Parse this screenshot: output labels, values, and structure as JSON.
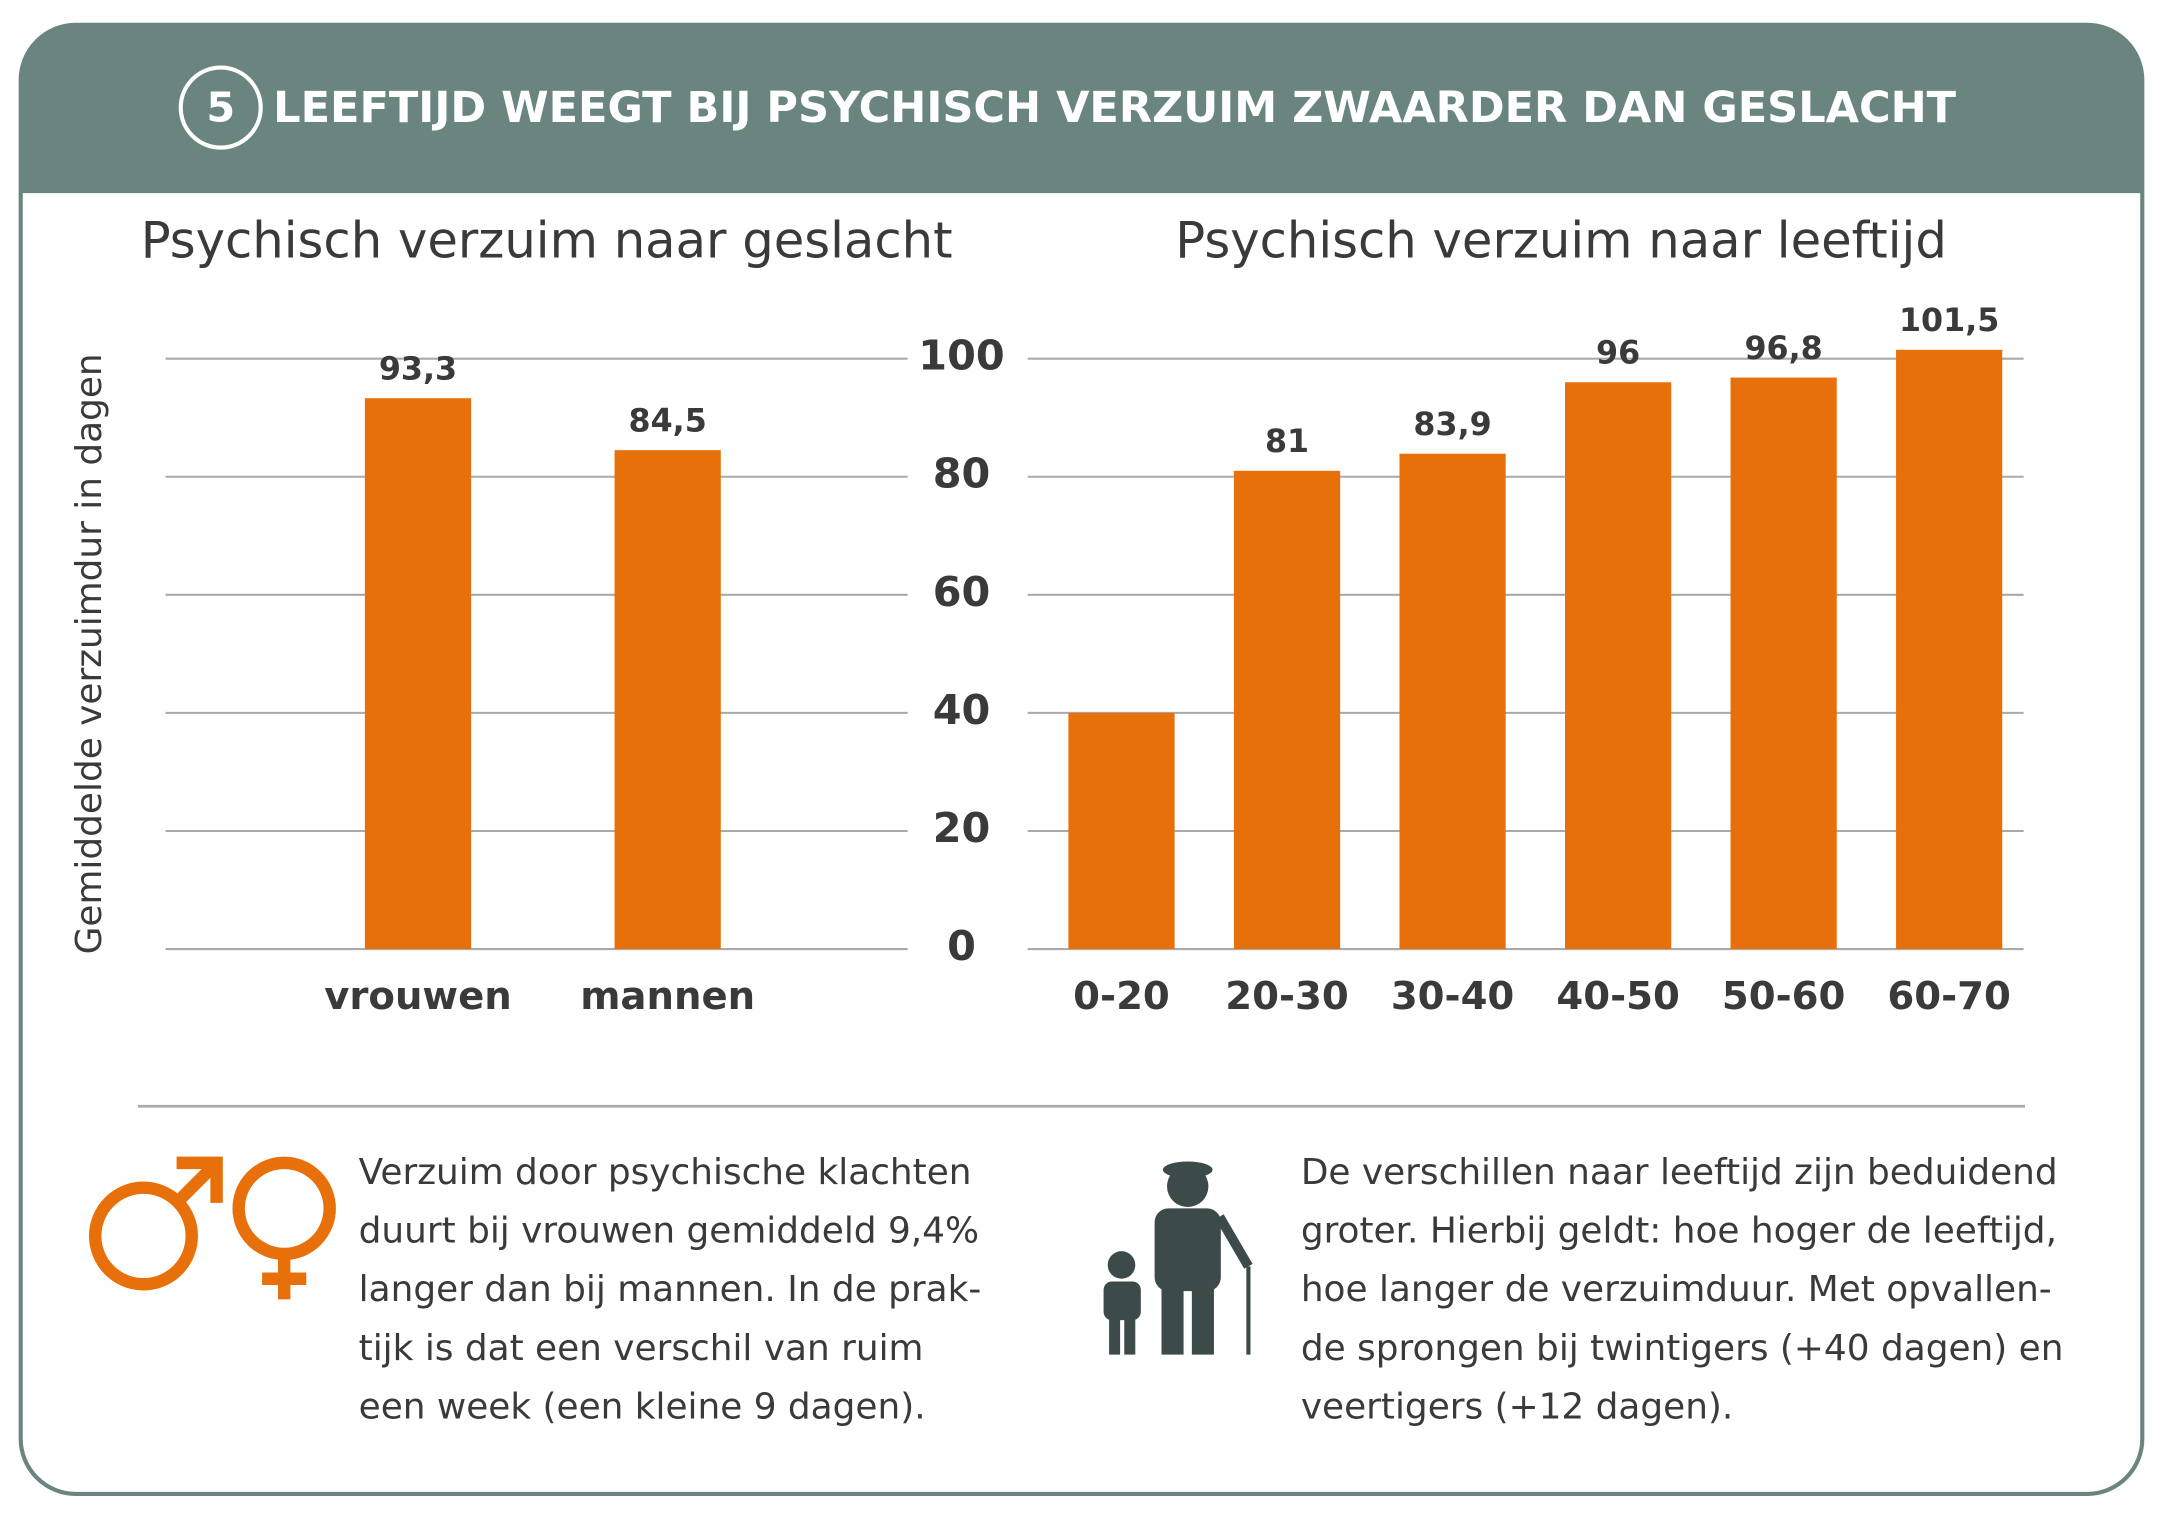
{
  "header": {
    "number": "5",
    "title": "LEEFTIJD WEEGT BIJ PSYCHISCH VERZUIM ZWAARDER DAN GESLACHT"
  },
  "chart_data": [
    {
      "type": "bar",
      "title": "Psychisch verzuim naar geslacht",
      "y_label": "Gemiddelde verzuimdur in dagen",
      "categories": [
        "vrouwen",
        "mannen"
      ],
      "values": [
        93.3,
        84.5
      ],
      "value_labels": [
        "93,3",
        "84,5"
      ],
      "color": "#e8700a",
      "ylim": [
        0,
        100
      ],
      "grid": true
    },
    {
      "type": "bar",
      "title": "Psychisch verzuim naar leeftijd",
      "categories": [
        "0-20",
        "20-30",
        "30-40",
        "40-50",
        "50-60",
        "60-70"
      ],
      "values": [
        40,
        81,
        83.9,
        96,
        96.8,
        101.5
      ],
      "value_labels": [
        null,
        "81",
        "83,9",
        "96",
        "96,8",
        "101,5"
      ],
      "color": "#e8700a",
      "ylim": [
        0,
        100
      ],
      "yticks": [
        0,
        20,
        40,
        60,
        80,
        100
      ],
      "grid": true
    }
  ],
  "notes": [
    {
      "lines": [
        "Verzuim door psychische klachten",
        "duurt bij vrouwen gemiddeld 9,4%",
        "langer dan bij mannen. In de prak-",
        "tijk is dat een verschil van ruim",
        "een week (een kleine 9 dagen)."
      ]
    },
    {
      "lines": [
        "De verschillen naar leeftijd zijn beduidend",
        "groter. Hierbij geldt: hoe hoger de leeftijd,",
        "hoe langer de verzuimduur. Met opvallen-",
        "de sprongen bij twintigers (+40 dagen) en",
        "veertigers (+12 dagen)."
      ]
    }
  ]
}
